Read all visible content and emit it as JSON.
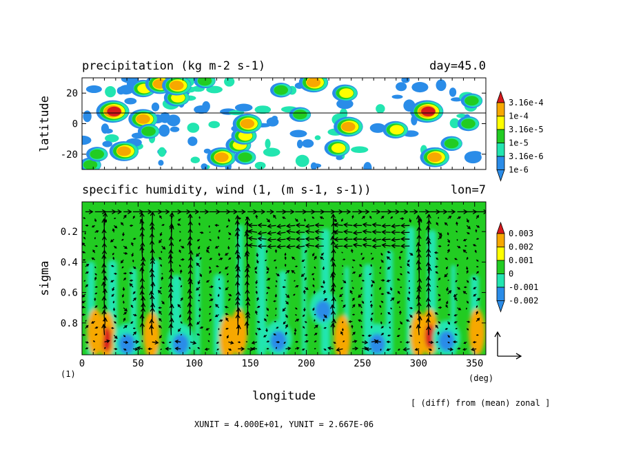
{
  "chart_data": [
    {
      "type": "heatmap",
      "title": "precipitation (kg m-2 s-1)",
      "title_right": "day=45.0",
      "ylabel": "latitude",
      "xlim": [
        0,
        360
      ],
      "ylim": [
        -30,
        30
      ],
      "yticks": [
        {
          "value": 20,
          "label": "20"
        },
        {
          "value": 0,
          "label": "0"
        },
        {
          "value": -20,
          "label": "-20"
        }
      ],
      "reference_line_lat": 7,
      "colorbar": {
        "levels": [
          "3.16e-4",
          "1e-4",
          "3.16e-5",
          "1e-5",
          "3.16e-6",
          "1e-6"
        ],
        "colors": [
          "#d7191c",
          "#f7a800",
          "#ffff00",
          "#22cc22",
          "#22e5b0",
          "#2a8ce8"
        ]
      },
      "cells": [
        {
          "lon": 8,
          "lat": -27,
          "level": 3
        },
        {
          "lon": 14,
          "lat": -20,
          "level": 3
        },
        {
          "lon": 28,
          "lat": 8,
          "level": 6
        },
        {
          "lon": 38,
          "lat": -18,
          "level": 5
        },
        {
          "lon": 55,
          "lat": 3,
          "level": 5
        },
        {
          "lon": 60,
          "lat": -5,
          "level": 3
        },
        {
          "lon": 55,
          "lat": 23,
          "level": 4
        },
        {
          "lon": 70,
          "lat": 26,
          "level": 5
        },
        {
          "lon": 85,
          "lat": 17,
          "level": 4
        },
        {
          "lon": 85,
          "lat": 25,
          "level": 5
        },
        {
          "lon": 110,
          "lat": 28,
          "level": 3
        },
        {
          "lon": 125,
          "lat": -22,
          "level": 5
        },
        {
          "lon": 140,
          "lat": -14,
          "level": 4
        },
        {
          "lon": 145,
          "lat": -8,
          "level": 4
        },
        {
          "lon": 148,
          "lat": 0,
          "level": 5
        },
        {
          "lon": 146,
          "lat": -22,
          "level": 3
        },
        {
          "lon": 178,
          "lat": 22,
          "level": 3
        },
        {
          "lon": 195,
          "lat": 6,
          "level": 3
        },
        {
          "lon": 207,
          "lat": 27,
          "level": 5
        },
        {
          "lon": 228,
          "lat": -16,
          "level": 4
        },
        {
          "lon": 238,
          "lat": -2,
          "level": 5
        },
        {
          "lon": 235,
          "lat": 20,
          "level": 4
        },
        {
          "lon": 280,
          "lat": -4,
          "level": 4
        },
        {
          "lon": 308,
          "lat": 8,
          "level": 6
        },
        {
          "lon": 315,
          "lat": -22,
          "level": 5
        },
        {
          "lon": 330,
          "lat": -13,
          "level": 3
        },
        {
          "lon": 345,
          "lat": 0,
          "level": 3
        },
        {
          "lon": 348,
          "lat": 15,
          "level": 3
        }
      ]
    },
    {
      "type": "heatmap",
      "title": "specific humidity, wind (1, (m s-1, s-1))",
      "title_right": "lon=7",
      "xlabel": "longitude",
      "ylabel": "sigma",
      "xlim": [
        0,
        360
      ],
      "ylim": [
        0,
        1
      ],
      "xticks": [
        {
          "value": 0,
          "label": "0"
        },
        {
          "value": 50,
          "label": "50"
        },
        {
          "value": 100,
          "label": "100"
        },
        {
          "value": 150,
          "label": "150"
        },
        {
          "value": 200,
          "label": "200"
        },
        {
          "value": 250,
          "label": "250"
        },
        {
          "value": 300,
          "label": "300"
        },
        {
          "value": 350,
          "label": "350"
        }
      ],
      "yticks": [
        {
          "value": 0.2,
          "label": "0.2"
        },
        {
          "value": 0.4,
          "label": "0.4"
        },
        {
          "value": 0.6,
          "label": "0.6"
        },
        {
          "value": 0.8,
          "label": "0.8"
        }
      ],
      "x_unit_label": "(deg)",
      "y_unit_label": "(1)",
      "colorbar": {
        "levels": [
          "0.003",
          "0.002",
          "0.001",
          "0",
          "-0.001",
          "-0.002"
        ],
        "colors": [
          "#d7191c",
          "#f7a800",
          "#ffff00",
          "#22cc22",
          "#22e5b0",
          "#2a8ce8"
        ]
      },
      "anomalies": [
        {
          "lon": 22,
          "sigma": 0.88,
          "value": 0.0025
        },
        {
          "lon": 12,
          "sigma": 0.86,
          "value": 0.0018
        },
        {
          "lon": 40,
          "sigma": 0.92,
          "value": -0.0018
        },
        {
          "lon": 62,
          "sigma": 0.88,
          "value": 0.0016
        },
        {
          "lon": 88,
          "sigma": 0.92,
          "value": -0.0015
        },
        {
          "lon": 130,
          "sigma": 0.9,
          "value": 0.0012
        },
        {
          "lon": 140,
          "sigma": 0.86,
          "value": 0.0016
        },
        {
          "lon": 175,
          "sigma": 0.9,
          "value": -0.0018
        },
        {
          "lon": 215,
          "sigma": 0.7,
          "value": -0.002
        },
        {
          "lon": 232,
          "sigma": 0.9,
          "value": 0.0012
        },
        {
          "lon": 263,
          "sigma": 0.92,
          "value": -0.0015
        },
        {
          "lon": 300,
          "sigma": 0.88,
          "value": 0.0018
        },
        {
          "lon": 310,
          "sigma": 0.86,
          "value": 0.0025
        },
        {
          "lon": 325,
          "sigma": 0.9,
          "value": -0.0018
        },
        {
          "lon": 352,
          "sigma": 0.86,
          "value": 0.0012
        }
      ],
      "reference_vector_note": "[ (diff) from (mean) zonal ]"
    }
  ],
  "footer": {
    "units": "XUNIT = 4.000E+01, YUNIT = 2.667E-06"
  }
}
